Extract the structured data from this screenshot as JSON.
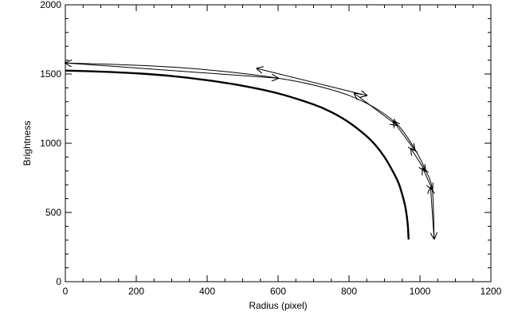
{
  "chart_data": {
    "type": "line",
    "title": "",
    "xlabel": "Radius (pixel)",
    "ylabel": "Brightness",
    "xlim": [
      0,
      1200
    ],
    "ylim": [
      0,
      2000
    ],
    "x_ticks": [
      0,
      200,
      400,
      600,
      800,
      1000,
      1200
    ],
    "y_ticks": [
      0,
      500,
      1000,
      1500,
      2000
    ],
    "grid": false,
    "legend": "none",
    "series": [
      {
        "style": "thick",
        "x": [
          0,
          100,
          200,
          300,
          400,
          500,
          600,
          700,
          750,
          800,
          850,
          875,
          900,
          925,
          940,
          950,
          958,
          963,
          966,
          968
        ],
        "y": [
          1525,
          1517,
          1505,
          1485,
          1455,
          1415,
          1360,
          1280,
          1225,
          1150,
          1050,
          985,
          900,
          790,
          710,
          630,
          550,
          470,
          400,
          305
        ]
      },
      {
        "style": "thin",
        "x": [
          0,
          150,
          300,
          450,
          600,
          700,
          800,
          880,
          940,
          985,
          1015,
          1035,
          1040
        ],
        "y": [
          1580,
          1568,
          1550,
          1518,
          1470,
          1420,
          1345,
          1245,
          1125,
          960,
          810,
          660,
          305
        ]
      }
    ],
    "annotations": {
      "type": "double-arrows",
      "arrows": [
        {
          "from": [
            0,
            1580
          ],
          "to": [
            600,
            1470
          ]
        },
        {
          "from": [
            540,
            1540
          ],
          "to": [
            850,
            1345
          ]
        },
        {
          "from": [
            815,
            1360
          ],
          "to": [
            935,
            1130
          ]
        },
        {
          "from": [
            925,
            1160
          ],
          "to": [
            985,
            950
          ]
        },
        {
          "from": [
            975,
            960
          ],
          "to": [
            1015,
            800
          ]
        },
        {
          "from": [
            1008,
            820
          ],
          "to": [
            1035,
            665
          ]
        },
        {
          "from": [
            1030,
            680
          ],
          "to": [
            1040,
            310
          ]
        }
      ]
    }
  }
}
